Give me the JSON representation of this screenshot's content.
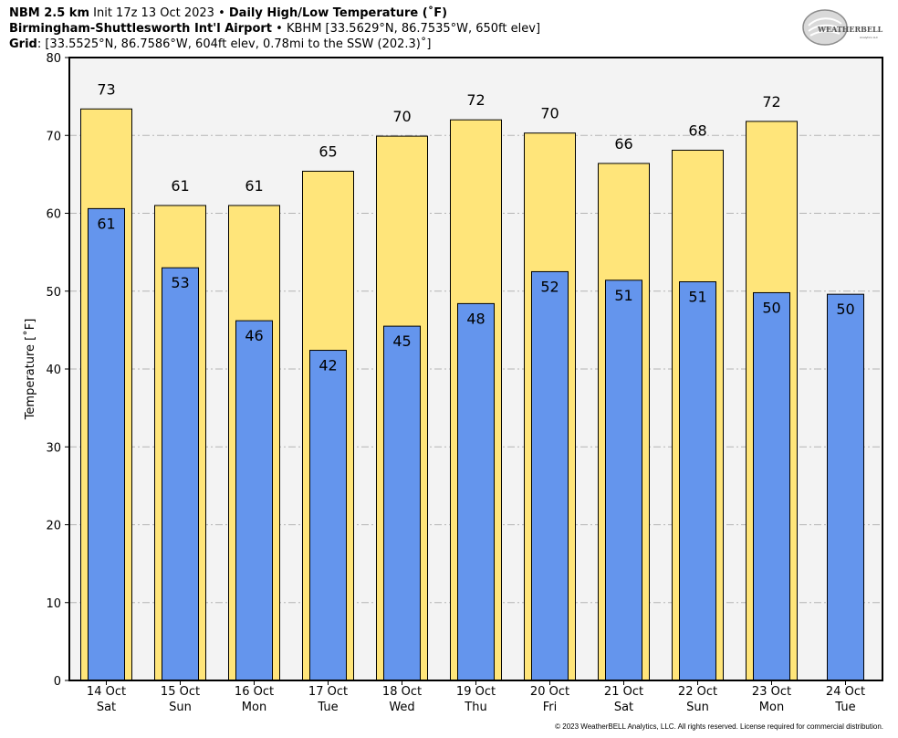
{
  "header": {
    "line1_model": "NBM 2.5 km",
    "line1_init": "Init 17z 13 Oct 2023",
    "line1_bullet": "•",
    "line1_product": "Daily High/Low Temperature (˚F)",
    "line2_station": "Birmingham-Shuttlesworth Int'l Airport",
    "line2_bullet": "•",
    "line2_details": "KBHM [33.5629°N, 86.7535°W, 650ft elev]",
    "line3_label": "Grid",
    "line3_details": ": [33.5525°N, 86.7586°W, 604ft elev, 0.78mi to the SSW (202.3)˚]"
  },
  "logo": {
    "text_main": "WEATHERBELL",
    "text_sub": "Analytics LLC"
  },
  "footer": {
    "copyright": "© 2023 WeatherBELL Analytics, LLC. All rights reserved. License required for commercial distribution."
  },
  "colors": {
    "high": "#ffe57a",
    "low": "#6495ed",
    "plot_bg": "#f3f3f3",
    "grid": "#b4b4b4"
  },
  "chart_data": {
    "type": "bar",
    "ylabel": "Temperature [˚F]",
    "ylim": [
      0,
      80
    ],
    "yticks": [
      0,
      10,
      20,
      30,
      40,
      50,
      60,
      70,
      80
    ],
    "grid": true,
    "categories": [
      {
        "date": "14 Oct",
        "day": "Sat"
      },
      {
        "date": "15 Oct",
        "day": "Sun"
      },
      {
        "date": "16 Oct",
        "day": "Mon"
      },
      {
        "date": "17 Oct",
        "day": "Tue"
      },
      {
        "date": "18 Oct",
        "day": "Wed"
      },
      {
        "date": "19 Oct",
        "day": "Thu"
      },
      {
        "date": "20 Oct",
        "day": "Fri"
      },
      {
        "date": "21 Oct",
        "day": "Sat"
      },
      {
        "date": "22 Oct",
        "day": "Sun"
      },
      {
        "date": "23 Oct",
        "day": "Mon"
      },
      {
        "date": "24 Oct",
        "day": "Tue"
      }
    ],
    "series": [
      {
        "values": [
          73.4,
          61.0,
          61.0,
          65.4,
          69.9,
          72.0,
          70.3,
          66.4,
          68.1,
          71.8,
          null
        ],
        "labels": [
          "73",
          "61",
          "61",
          "65",
          "70",
          "72",
          "70",
          "66",
          "68",
          "72",
          ""
        ]
      },
      {
        "values": [
          60.6,
          53.0,
          46.2,
          42.4,
          45.5,
          48.4,
          52.5,
          51.4,
          51.2,
          49.8,
          49.6
        ],
        "labels": [
          "61",
          "53",
          "46",
          "42",
          "45",
          "48",
          "52",
          "51",
          "51",
          "50",
          "50"
        ]
      }
    ]
  }
}
